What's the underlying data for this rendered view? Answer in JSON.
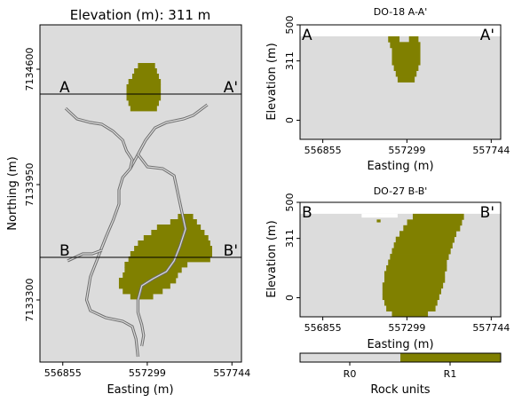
{
  "colors": {
    "panel_bg": "#dcdcdc",
    "ore": "#808000",
    "stream": "#6e6e6e",
    "r0": "#dcdcdc",
    "r1": "#808000"
  },
  "chart_data": [
    {
      "type": "heatmap",
      "role": "plan-map",
      "title": "Elevation (m):   311 m",
      "xlabel": "Easting (m)",
      "ylabel": "Northing (m)",
      "xlim": [
        556735,
        557794
      ],
      "ylim": [
        7132950,
        7134850
      ],
      "xticks": [
        "556855",
        "557299",
        "557744"
      ],
      "yticks": [
        "7133300",
        "7133950",
        "7134600"
      ],
      "section_lines": [
        {
          "north": 7134460,
          "left_label": "A",
          "right_label": "A'"
        },
        {
          "north": 7133540,
          "left_label": "B",
          "right_label": "B'"
        }
      ],
      "ore_bodies": [
        {
          "name": "upper body",
          "rows": [
            [
              7134620,
              557250,
              557340
            ],
            [
              7134590,
              557230,
              557350
            ],
            [
              7134560,
              557220,
              557360
            ],
            [
              7134530,
              557200,
              557370
            ],
            [
              7134500,
              557190,
              557370
            ],
            [
              7134470,
              557190,
              557370
            ],
            [
              7134440,
              557190,
              557370
            ],
            [
              7134410,
              557200,
              557360
            ],
            [
              7134380,
              557210,
              557350
            ]
          ]
        },
        {
          "name": "lower body",
          "rows": [
            [
              7133770,
              557460,
              557540
            ],
            [
              7133740,
              557420,
              557560
            ],
            [
              7133710,
              557350,
              557580
            ],
            [
              7133680,
              557320,
              557600
            ],
            [
              7133650,
              557280,
              557620
            ],
            [
              7133620,
              557250,
              557630
            ],
            [
              7133590,
              557230,
              557640
            ],
            [
              7133560,
              557210,
              557640
            ],
            [
              7133530,
              557200,
              557630
            ],
            [
              7133500,
              557180,
              557510
            ],
            [
              7133470,
              557180,
              557480
            ],
            [
              7133440,
              557170,
              557460
            ],
            [
              7133410,
              557150,
              557450
            ],
            [
              7133380,
              557150,
              557420
            ],
            [
              7133350,
              557170,
              557380
            ],
            [
              7133320,
              557210,
              557330
            ]
          ]
        }
      ],
      "streams": [
        [
          [
            557615,
            7134400
          ],
          [
            557540,
            7134340
          ],
          [
            557490,
            7134320
          ],
          [
            557400,
            7134300
          ],
          [
            557340,
            7134270
          ],
          [
            557290,
            7134200
          ],
          [
            557250,
            7134120
          ],
          [
            557210,
            7134040
          ],
          [
            557170,
            7133990
          ],
          [
            557150,
            7133920
          ],
          [
            557150,
            7133840
          ],
          [
            557120,
            7133750
          ],
          [
            557080,
            7133650
          ],
          [
            557040,
            7133540
          ],
          [
            557000,
            7133430
          ],
          [
            556980,
            7133300
          ],
          [
            557000,
            7133240
          ],
          [
            557080,
            7133200
          ],
          [
            557170,
            7133180
          ],
          [
            557220,
            7133150
          ],
          [
            557240,
            7133080
          ],
          [
            557250,
            7132980
          ]
        ],
        [
          [
            556870,
            7134380
          ],
          [
            556930,
            7134320
          ],
          [
            557000,
            7134300
          ],
          [
            557060,
            7134290
          ],
          [
            557120,
            7134250
          ],
          [
            557170,
            7134200
          ],
          [
            557190,
            7134140
          ],
          [
            557220,
            7134090
          ],
          [
            557210,
            7134040
          ]
        ],
        [
          [
            557250,
            7134120
          ],
          [
            557300,
            7134050
          ],
          [
            557380,
            7134040
          ],
          [
            557440,
            7134000
          ],
          [
            557460,
            7133900
          ],
          [
            557480,
            7133800
          ],
          [
            557500,
            7133700
          ],
          [
            557470,
            7133600
          ],
          [
            557440,
            7133520
          ],
          [
            557400,
            7133460
          ],
          [
            557330,
            7133420
          ],
          [
            557270,
            7133380
          ],
          [
            557250,
            7133300
          ],
          [
            557250,
            7133230
          ],
          [
            557270,
            7133160
          ],
          [
            557280,
            7133100
          ],
          [
            557270,
            7133040
          ]
        ],
        [
          [
            556880,
            7133520
          ],
          [
            556960,
            7133560
          ],
          [
            557010,
            7133560
          ],
          [
            557060,
            7133580
          ]
        ]
      ]
    },
    {
      "type": "heatmap",
      "role": "cross-section",
      "title": "DO-18 A-A'",
      "xlabel": "Easting (m)",
      "ylabel": "Elevation (m)",
      "xlim": [
        556735,
        557794
      ],
      "ylim": [
        -100,
        500
      ],
      "xticks": [
        "556855",
        "557299",
        "557744"
      ],
      "yticks": [
        "0",
        "311",
        "500"
      ],
      "left_label": "A",
      "right_label": "A'",
      "surface_elevation": 440,
      "ore_rows": [
        [
          440,
          557200,
          557260
        ],
        [
          440,
          557310,
          557360
        ],
        [
          410,
          557210,
          557370
        ],
        [
          380,
          557220,
          557370
        ],
        [
          350,
          557220,
          557370
        ],
        [
          320,
          557220,
          557370
        ],
        [
          290,
          557230,
          557360
        ],
        [
          260,
          557240,
          557350
        ],
        [
          230,
          557250,
          557340
        ]
      ]
    },
    {
      "type": "heatmap",
      "role": "cross-section",
      "title": "DO-27 B-B'",
      "xlabel": "Easting (m)",
      "ylabel": "Elevation (m)",
      "xlim": [
        556735,
        557794
      ],
      "ylim": [
        -100,
        500
      ],
      "xticks": [
        "556855",
        "557299",
        "557744"
      ],
      "yticks": [
        "0",
        "311",
        "500"
      ],
      "left_label": "B",
      "right_label": "B'",
      "surface_elevation": 440,
      "surface_notch": [
        557060,
        557250,
        420
      ],
      "ore_rows": [
        [
          440,
          557330,
          557600
        ],
        [
          410,
          557300,
          557590
        ],
        [
          380,
          557280,
          557580
        ],
        [
          350,
          557260,
          557560
        ],
        [
          320,
          557240,
          557550
        ],
        [
          290,
          557230,
          557540
        ],
        [
          260,
          557220,
          557530
        ],
        [
          230,
          557210,
          557520
        ],
        [
          200,
          557200,
          557510
        ],
        [
          170,
          557190,
          557510
        ],
        [
          140,
          557180,
          557500
        ],
        [
          110,
          557180,
          557500
        ],
        [
          80,
          557170,
          557490
        ],
        [
          50,
          557170,
          557480
        ],
        [
          20,
          557170,
          557470
        ],
        [
          -10,
          557180,
          557460
        ],
        [
          -40,
          557190,
          557450
        ],
        [
          -70,
          557220,
          557410
        ]
      ],
      "ore_extra_cells": [
        [
          410,
          557140,
          557160
        ]
      ]
    }
  ],
  "legend": {
    "title": "Rock units",
    "entries": [
      {
        "label": "R0",
        "color": "#dcdcdc"
      },
      {
        "label": "R1",
        "color": "#808000"
      }
    ]
  }
}
